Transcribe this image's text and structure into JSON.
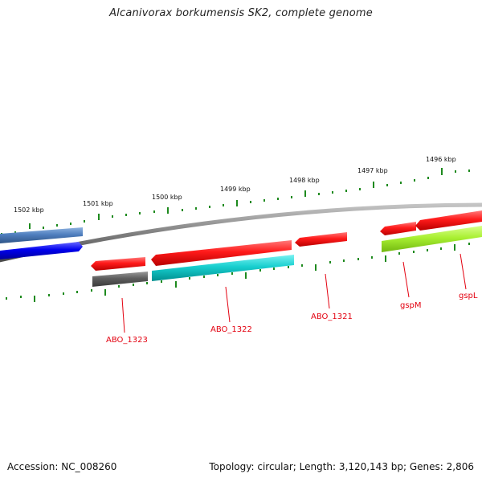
{
  "title": "Alcanivorax borkumensis SK2, complete genome",
  "footer": {
    "accession": "Accession: NC_008260",
    "topology": "Topology: circular; Length: 3,120,143 bp; Genes: 2,806"
  },
  "colors": {
    "background": "#ffffff",
    "backbone": "#8c8c8c",
    "tick_mark": "#1e8a1e",
    "label": "#e3000f",
    "red_gene": "#ff0000",
    "cyan_gene": "#00cccc",
    "gray_gene": "#606060",
    "lime_gene": "#a8f032",
    "blue_gene": "#0000ee",
    "steel_gene": "#4f7fbf"
  },
  "ruler_labels": [
    "1502 kbp",
    "1501 kbp",
    "1500 kbp",
    "1499 kbp",
    "1498 kbp",
    "1497 kbp",
    "1496 kbp"
  ],
  "gene_labels": [
    "ABO_1323",
    "ABO_1322",
    "ABO_1321",
    "gspM",
    "gspL"
  ]
}
